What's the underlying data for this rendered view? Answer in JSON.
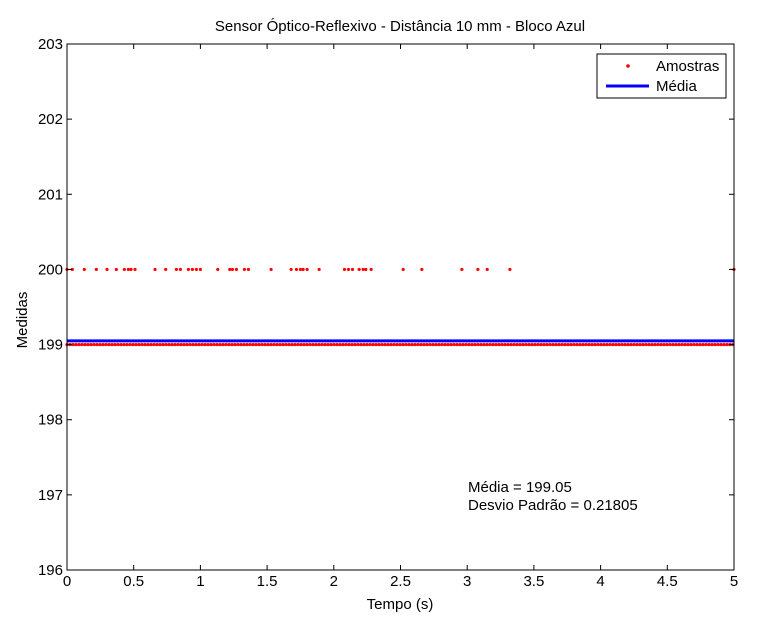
{
  "chart_data": {
    "type": "scatter",
    "title": "Sensor Óptico-Reflexivo - Distância 10 mm - Bloco Azul",
    "xlabel": "Tempo (s)",
    "ylabel": "Medidas",
    "xlim": [
      0,
      5
    ],
    "ylim": [
      196,
      203
    ],
    "xticks": [
      "0",
      "0.5",
      "1",
      "1.5",
      "2",
      "2.5",
      "3",
      "3.5",
      "4",
      "4.5",
      "5"
    ],
    "yticks": [
      "196",
      "197",
      "198",
      "199",
      "200",
      "201",
      "202",
      "203"
    ],
    "grid": false,
    "legend_placement": "top-right",
    "colors": {
      "samples": "#ff0000",
      "mean": "#0000ff"
    },
    "series": [
      {
        "name": "Amostras",
        "kind": "points",
        "y_level": 200,
        "x": [
          0.0,
          0.04,
          0.13,
          0.22,
          0.3,
          0.37,
          0.43,
          0.46,
          0.48,
          0.51,
          0.66,
          0.74,
          0.82,
          0.85,
          0.91,
          0.94,
          0.97,
          1.0,
          1.13,
          1.22,
          1.24,
          1.27,
          1.33,
          1.36,
          1.53,
          1.68,
          1.72,
          1.75,
          1.77,
          1.8,
          1.89,
          2.08,
          2.11,
          2.14,
          2.19,
          2.22,
          2.24,
          2.28,
          2.52,
          2.66,
          2.96,
          3.08,
          3.15,
          3.32,
          5.0
        ]
      },
      {
        "name": "Amostras",
        "kind": "dense-points",
        "y_level": 199,
        "x_range": [
          0,
          5
        ]
      },
      {
        "name": "Média",
        "kind": "line",
        "y": 199.05,
        "x_range": [
          0,
          5
        ]
      }
    ],
    "legend": [
      {
        "label": "Amostras",
        "marker": "dot"
      },
      {
        "label": "Média",
        "marker": "line"
      }
    ],
    "annotations": [
      "Média = 199.05",
      "Desvio Padrão = 0.21805"
    ]
  }
}
